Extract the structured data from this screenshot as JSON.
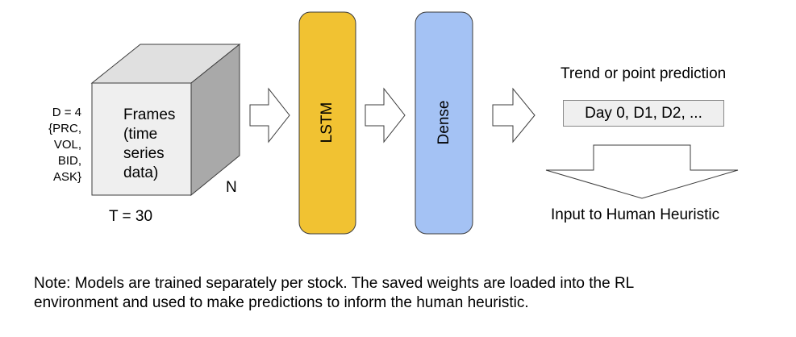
{
  "input": {
    "dimension_lines": [
      "D = 4",
      "{PRC,",
      "VOL,",
      "BID,",
      "ASK}"
    ],
    "frames_lines": [
      "Frames",
      "(time",
      "series",
      "data)"
    ],
    "n_label": "N",
    "t_label": "T = 30"
  },
  "layers": {
    "lstm_label": "LSTM",
    "dense_label": "Dense"
  },
  "output": {
    "title": "Trend or point prediction",
    "box_text": "Day 0, D1, D2, ...",
    "caption": "Input to Human Heuristic"
  },
  "note": {
    "line1": "Note: Models are trained separately per stock. The saved weights are loaded into the RL",
    "line2": "environment and used to make predictions to inform the human heuristic."
  },
  "colors": {
    "cube_front": "#efefef",
    "cube_top": "#e0e0e0",
    "cube_side": "#a9a9a9",
    "lstm_fill": "#f1c232",
    "dense_fill": "#a4c2f4",
    "stroke": "#3c3c3c"
  }
}
